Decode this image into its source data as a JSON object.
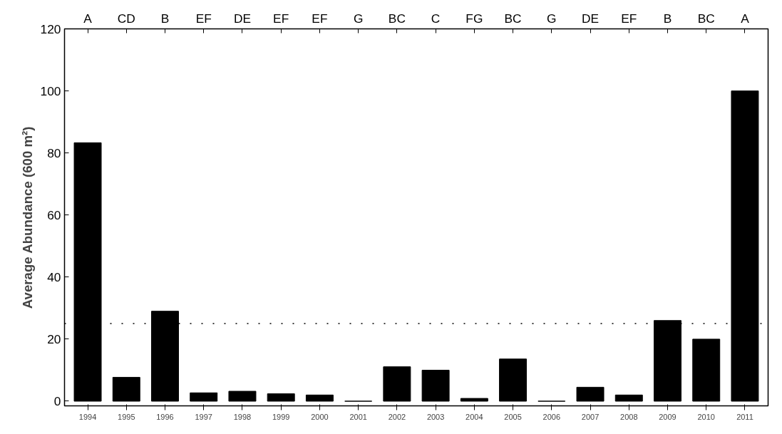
{
  "chart_data": {
    "type": "bar",
    "ylabel": "Average Abundance (600 m²)",
    "categories": [
      "1994",
      "1995",
      "1996",
      "1997",
      "1998",
      "1999",
      "2000",
      "2001",
      "2002",
      "2003",
      "2004",
      "2005",
      "2006",
      "2007",
      "2008",
      "2009",
      "2010",
      "2011"
    ],
    "values": [
      83.3,
      7.7,
      29,
      2.7,
      3.2,
      2.4,
      2,
      0,
      11.1,
      10,
      0.9,
      13.6,
      0,
      4.5,
      2,
      26,
      20,
      100
    ],
    "color": "#000000",
    "ylim": [
      -1.5,
      120
    ],
    "yticks": [
      0,
      20,
      40,
      60,
      80,
      100,
      120
    ],
    "grid": false,
    "ref_lines": [
      {
        "axis": "y",
        "value": 25,
        "line_style": "dotted",
        "color": "#000000"
      }
    ],
    "annotations": [
      {
        "text": "A",
        "x": "1994"
      },
      {
        "text": "CD",
        "x": "1995"
      },
      {
        "text": "B",
        "x": "1996"
      },
      {
        "text": "EF",
        "x": "1997"
      },
      {
        "text": "DE",
        "x": "1998"
      },
      {
        "text": "EF",
        "x": "1999"
      },
      {
        "text": "EF",
        "x": "2000"
      },
      {
        "text": "G",
        "x": "2001"
      },
      {
        "text": "BC",
        "x": "2002"
      },
      {
        "text": "C",
        "x": "2003"
      },
      {
        "text": "FG",
        "x": "2004"
      },
      {
        "text": "BC",
        "x": "2005"
      },
      {
        "text": "G",
        "x": "2006"
      },
      {
        "text": "DE",
        "x": "2007"
      },
      {
        "text": "EF",
        "x": "2008"
      },
      {
        "text": "B",
        "x": "2009"
      },
      {
        "text": "BC",
        "x": "2010"
      },
      {
        "text": "A",
        "x": "2011"
      }
    ]
  }
}
